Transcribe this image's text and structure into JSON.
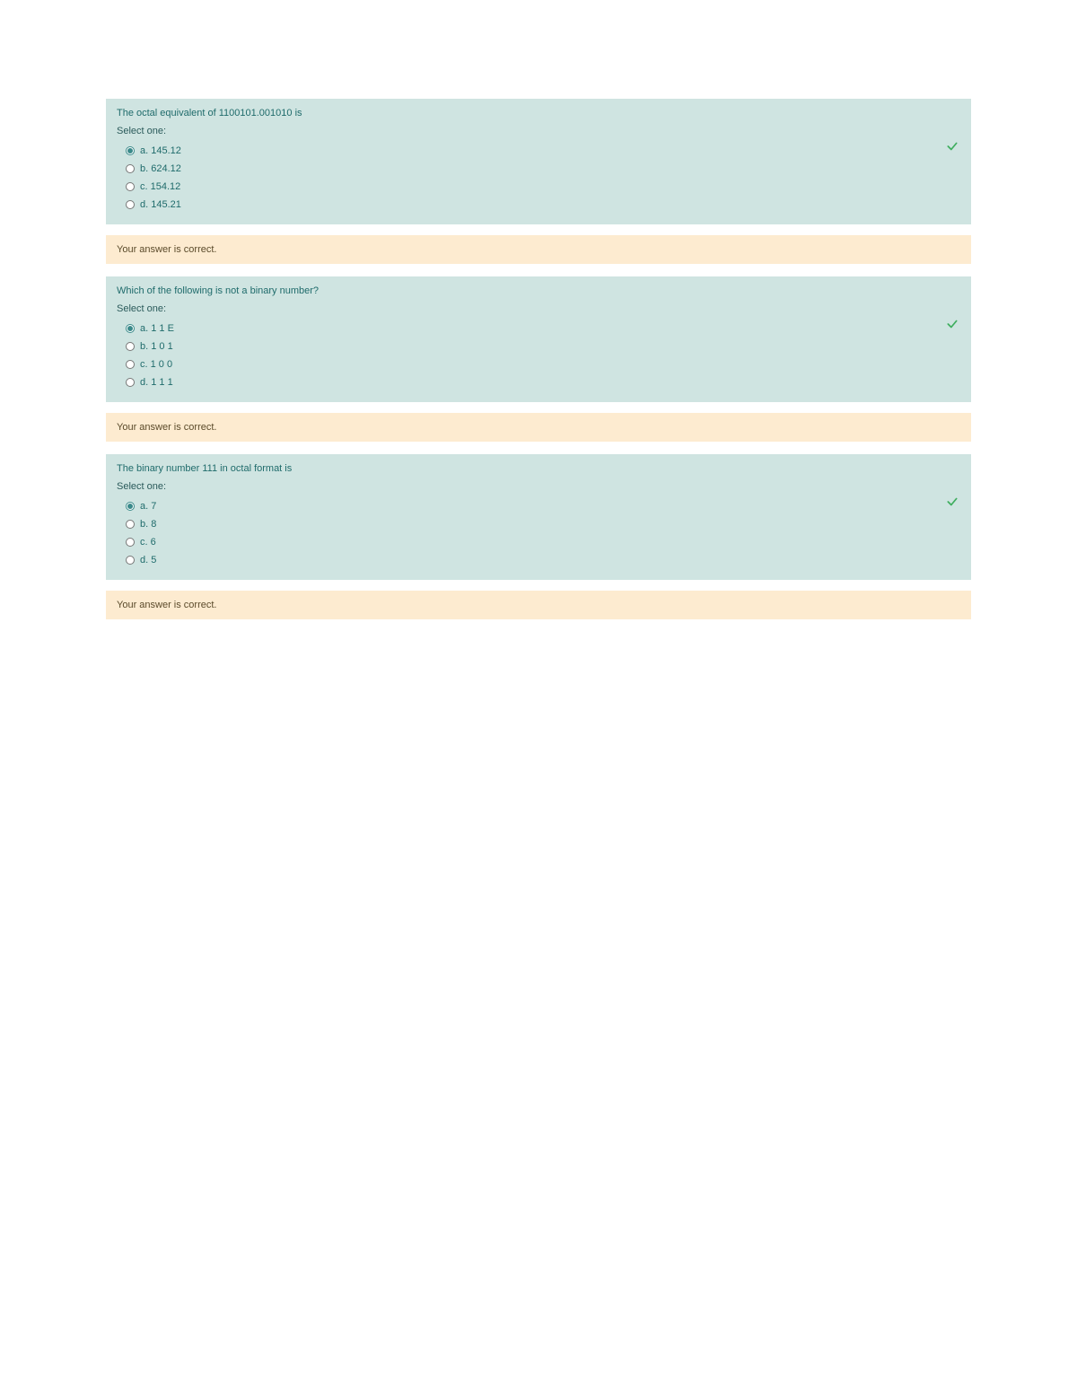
{
  "colors": {
    "question_bg": "#cfe4e1",
    "feedback_bg": "#fdebd0",
    "text_primary": "#1f6b6b",
    "text_body": "#2a5a5a",
    "feedback_text": "#5a4a2a",
    "check_color": "#3fae5f",
    "page_bg": "#ffffff"
  },
  "questions": [
    {
      "prompt": "The octal equivalent of 1100101.001010 is",
      "select_label": "Select one:",
      "selected_index": 0,
      "correct": true,
      "options": [
        {
          "label": "a. 145.12"
        },
        {
          "label": "b. 624.12"
        },
        {
          "label": "c. 154.12"
        },
        {
          "label": "d. 145.21"
        }
      ],
      "feedback": "Your answer is correct."
    },
    {
      "prompt": "Which of the following is not a binary number?",
      "select_label": "Select one:",
      "selected_index": 0,
      "correct": true,
      "options": [
        {
          "label": "a. 1 1 E"
        },
        {
          "label": "b. 1 0 1"
        },
        {
          "label": "c. 1 0 0"
        },
        {
          "label": "d. 1 1 1"
        }
      ],
      "feedback": "Your answer is correct."
    },
    {
      "prompt": "The binary number 111 in octal format is",
      "select_label": "Select one:",
      "selected_index": 0,
      "correct": true,
      "options": [
        {
          "label": "a. 7"
        },
        {
          "label": "b. 8"
        },
        {
          "label": "c. 6"
        },
        {
          "label": "d. 5"
        }
      ],
      "feedback": "Your answer is correct."
    }
  ]
}
